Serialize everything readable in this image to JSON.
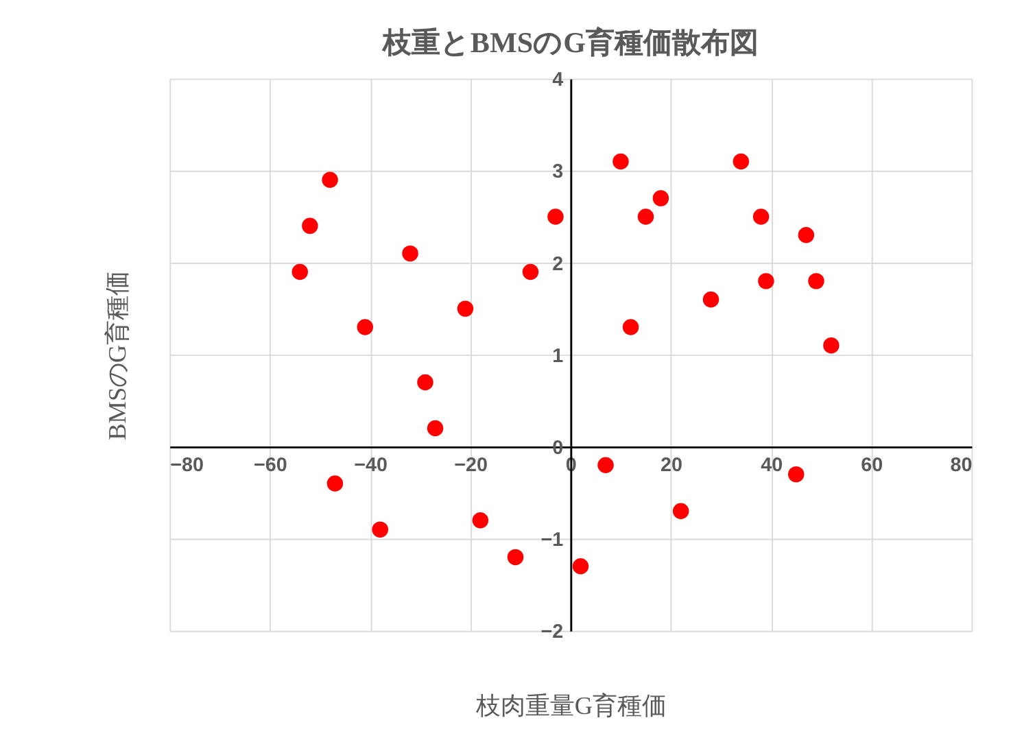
{
  "chart_data": {
    "type": "scatter",
    "title": "枝重とBMSのG育種価散布図",
    "xlabel": "枝肉重量G育種価",
    "ylabel": "BMSのG育種価",
    "x": [
      -48,
      -52,
      -54,
      -32,
      -41,
      -21,
      -29,
      -27,
      -47,
      -38,
      -18,
      -11,
      -8,
      -3,
      2,
      7,
      10,
      12,
      15,
      18,
      28,
      22,
      34,
      38,
      39,
      47,
      49,
      52,
      45
    ],
    "series": [
      {
        "color": "#ff0000",
        "values": [
          2.9,
          2.4,
          1.9,
          2.1,
          1.3,
          1.5,
          0.7,
          0.2,
          -0.4,
          -0.9,
          -0.8,
          -1.2,
          1.9,
          2.5,
          -1.3,
          -0.2,
          3.1,
          1.3,
          2.5,
          2.7,
          1.6,
          -0.7,
          3.1,
          2.5,
          1.8,
          2.3,
          1.8,
          1.1,
          -0.3
        ]
      }
    ],
    "xlim": [
      -80,
      80
    ],
    "xticks": [
      -80,
      -60,
      -40,
      -20,
      0,
      20,
      40,
      60,
      80
    ],
    "ylim": [
      -2,
      4
    ],
    "yticks": [
      -2,
      -1,
      0,
      1,
      2,
      3,
      4
    ],
    "grid": true,
    "marker": "circle",
    "legend": false
  }
}
